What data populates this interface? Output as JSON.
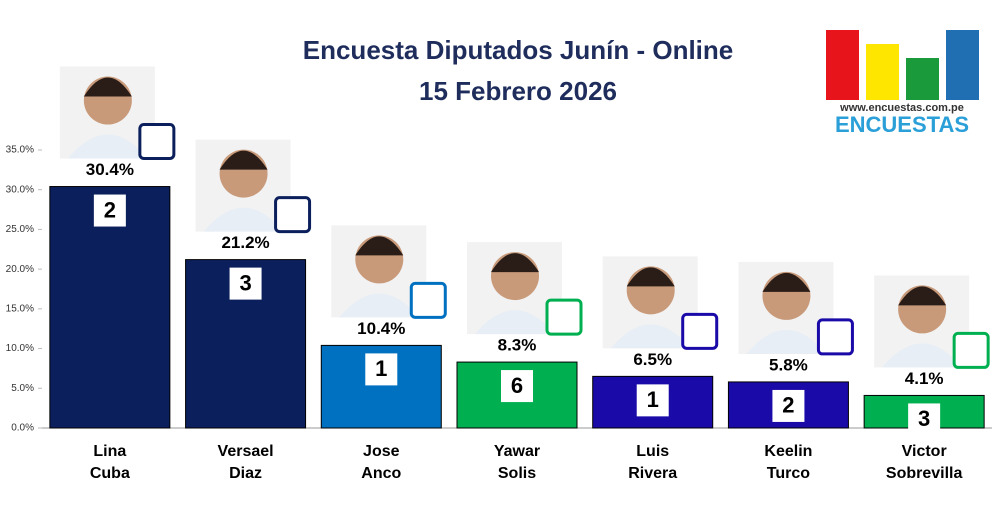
{
  "chart_data": {
    "type": "bar",
    "title": [
      "Encuesta Diputados Junín - Online",
      "15 Febrero 2026"
    ],
    "logo": {
      "url": "www.encuestas.com.pe",
      "name": "ENCUESTAS"
    },
    "categories": [
      [
        "Lina",
        "Cuba"
      ],
      [
        "Versael",
        "Diaz"
      ],
      [
        "Jose",
        "Anco"
      ],
      [
        "Yawar",
        "Solis"
      ],
      [
        "Luis",
        "Rivera"
      ],
      [
        "Keelin",
        "Turco"
      ],
      [
        "Victor",
        "Sobrevilla"
      ]
    ],
    "values": [
      30.4,
      21.2,
      10.4,
      8.3,
      6.5,
      5.8,
      4.1
    ],
    "value_labels": [
      "30.4%",
      "21.2%",
      "10.4%",
      "8.3%",
      "6.5%",
      "5.8%",
      "4.1%"
    ],
    "seats": [
      2,
      3,
      1,
      6,
      1,
      2,
      3
    ],
    "colors": [
      "#0b1f5c",
      "#0b1f5c",
      "#0070c0",
      "#00b050",
      "#1a0aa8",
      "#1a0aa8",
      "#00b050"
    ],
    "ylim": [
      0,
      35
    ],
    "yticks": [
      {
        "value": 0,
        "label": "0.0%"
      },
      {
        "value": 5,
        "label": "5.0%"
      },
      {
        "value": 10,
        "label": "10.0%"
      },
      {
        "value": 15,
        "label": "15.0%"
      },
      {
        "value": 20,
        "label": "20.0%"
      },
      {
        "value": 25,
        "label": "25.0%"
      },
      {
        "value": 30,
        "label": "30.0%"
      },
      {
        "value": 35,
        "label": "35.0%"
      }
    ]
  }
}
